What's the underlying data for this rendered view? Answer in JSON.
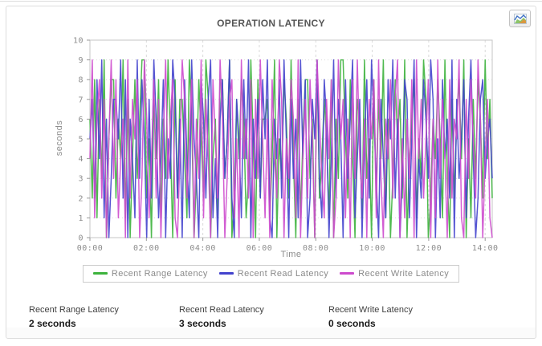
{
  "header": {
    "title": "OPERATION LATENCY"
  },
  "toolbar": {
    "chart_type_icon": "area-chart-icon"
  },
  "chart_data": {
    "type": "line",
    "title": "OPERATION LATENCY",
    "xlabel": "Time",
    "ylabel": "seconds",
    "ylim": [
      0,
      10
    ],
    "yticks": [
      0,
      1,
      2,
      3,
      4,
      5,
      6,
      7,
      8,
      9,
      10
    ],
    "x_tick_labels": [
      "00:00",
      "02:00",
      "04:00",
      "06:00",
      "08:00",
      "10:00",
      "12:00",
      "14:00"
    ],
    "x_tick_minutes": [
      0,
      120,
      240,
      360,
      480,
      600,
      720,
      840
    ],
    "x_end_minutes": 855,
    "sample_interval_minutes": 5,
    "grid": true,
    "legend_position": "bottom",
    "series": [
      {
        "name": "Recent Range Latency",
        "color": "#3db33d",
        "values": [
          6,
          2,
          8,
          1,
          7,
          3,
          9,
          0,
          5,
          8,
          8,
          2,
          6,
          4,
          9,
          1,
          7,
          0,
          4,
          8,
          3,
          6,
          9,
          9,
          2,
          5,
          0,
          7,
          4,
          8,
          1,
          6,
          3,
          9,
          5,
          0,
          8,
          2,
          7,
          7,
          4,
          1,
          9,
          6,
          0,
          3,
          8,
          5,
          2,
          9,
          7,
          0,
          4,
          6,
          1,
          8,
          8,
          3,
          5,
          9,
          0,
          2,
          7,
          4,
          8,
          6,
          1,
          3,
          9,
          5,
          0,
          8,
          2,
          6,
          6,
          7,
          1,
          4,
          9,
          0,
          5,
          3,
          8,
          6,
          2,
          9,
          4,
          0,
          7,
          1,
          5,
          8,
          8,
          3,
          6,
          0,
          9,
          2,
          4,
          7,
          5,
          1,
          8,
          0,
          6,
          3,
          9,
          9,
          5,
          2,
          8,
          4,
          0,
          7,
          6,
          1,
          9,
          3,
          5,
          0,
          8,
          2,
          7,
          4,
          9,
          1,
          6,
          0,
          3,
          8,
          5,
          7,
          2,
          9,
          0,
          4,
          6,
          8,
          1,
          5,
          3,
          9,
          7,
          0,
          2,
          6,
          4,
          8,
          5,
          1,
          9,
          3,
          0,
          7,
          2,
          6,
          8,
          4,
          9,
          0,
          5,
          1,
          7,
          3,
          8,
          6,
          2,
          9,
          4,
          7,
          2
        ]
      },
      {
        "name": "Recent Read Latency",
        "color": "#4343cd",
        "values": [
          5,
          7,
          2,
          8,
          4,
          9,
          1,
          6,
          0,
          3,
          7,
          7,
          5,
          9,
          2,
          8,
          0,
          6,
          4,
          1,
          9,
          3,
          8,
          5,
          0,
          7,
          2,
          9,
          6,
          1,
          4,
          8,
          0,
          5,
          3,
          9,
          7,
          2,
          6,
          0,
          8,
          4,
          1,
          9,
          5,
          3,
          0,
          8,
          6,
          2,
          7,
          9,
          1,
          4,
          0,
          6,
          8,
          3,
          5,
          9,
          2,
          0,
          7,
          5,
          1,
          8,
          4,
          9,
          0,
          6,
          3,
          7,
          2,
          8,
          5,
          9,
          1,
          0,
          6,
          4,
          8,
          2,
          9,
          5,
          0,
          7,
          3,
          6,
          1,
          9,
          4,
          8,
          0,
          2,
          7,
          5,
          9,
          3,
          1,
          8,
          6,
          0,
          4,
          9,
          2,
          7,
          5,
          0,
          8,
          3,
          6,
          9,
          1,
          4,
          7,
          0,
          5,
          8,
          2,
          9,
          6,
          3,
          0,
          7,
          4,
          1,
          8,
          5,
          9,
          2,
          6,
          0,
          3,
          8,
          7,
          1,
          5,
          9,
          0,
          4,
          2,
          8,
          6,
          3,
          9,
          7,
          0,
          5,
          1,
          8,
          4,
          6,
          2,
          9,
          0,
          7,
          3,
          5,
          8,
          1,
          6,
          9,
          4,
          0,
          2,
          7,
          8,
          3,
          5,
          6,
          3
        ]
      },
      {
        "name": "Recent Write Latency",
        "color": "#cd4bcd",
        "values": [
          4,
          9,
          1,
          6,
          8,
          2,
          7,
          0,
          5,
          9,
          3,
          8,
          1,
          4,
          6,
          0,
          9,
          2,
          7,
          5,
          8,
          0,
          3,
          9,
          6,
          1,
          4,
          8,
          2,
          7,
          0,
          5,
          9,
          3,
          6,
          8,
          1,
          0,
          4,
          9,
          7,
          2,
          5,
          8,
          0,
          6,
          3,
          9,
          1,
          7,
          4,
          0,
          8,
          5,
          2,
          9,
          6,
          0,
          3,
          7,
          8,
          1,
          5,
          0,
          9,
          4,
          6,
          2,
          8,
          0,
          7,
          3,
          9,
          5,
          1,
          6,
          0,
          8,
          4,
          2,
          9,
          7,
          0,
          5,
          3,
          8,
          6,
          1,
          9,
          0,
          4,
          7,
          2,
          8,
          5,
          0,
          9,
          6,
          3,
          1,
          7,
          4,
          8,
          0,
          2,
          9,
          5,
          7,
          1,
          6,
          0,
          8,
          3,
          9,
          4,
          2,
          6,
          0,
          7,
          5,
          8,
          1,
          9,
          3,
          0,
          6,
          4,
          8,
          2,
          7,
          9,
          0,
          5,
          1,
          6,
          3,
          8,
          0,
          9,
          4,
          7,
          2,
          5,
          8,
          0,
          6,
          1,
          9,
          3,
          7,
          4,
          0,
          8,
          2,
          6,
          5,
          9,
          1,
          0,
          7,
          3,
          8,
          5,
          2,
          9,
          6,
          0,
          4,
          7,
          1,
          0
        ]
      }
    ]
  },
  "stats": {
    "items": [
      {
        "label": "Recent Range Latency",
        "value": "2 seconds"
      },
      {
        "label": "Recent Read Latency",
        "value": "3 seconds"
      },
      {
        "label": "Recent Write Latency",
        "value": "0 seconds"
      }
    ]
  }
}
